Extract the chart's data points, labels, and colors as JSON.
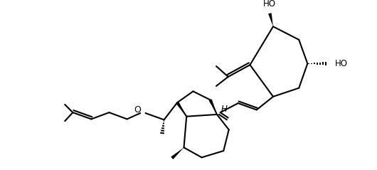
{
  "bg_color": "#ffffff",
  "line_color": "#000000",
  "lw": 1.5,
  "font_size": 8.5,
  "HO1": "HO",
  "HO2": "HO",
  "O_label": "O",
  "H_label": "H"
}
